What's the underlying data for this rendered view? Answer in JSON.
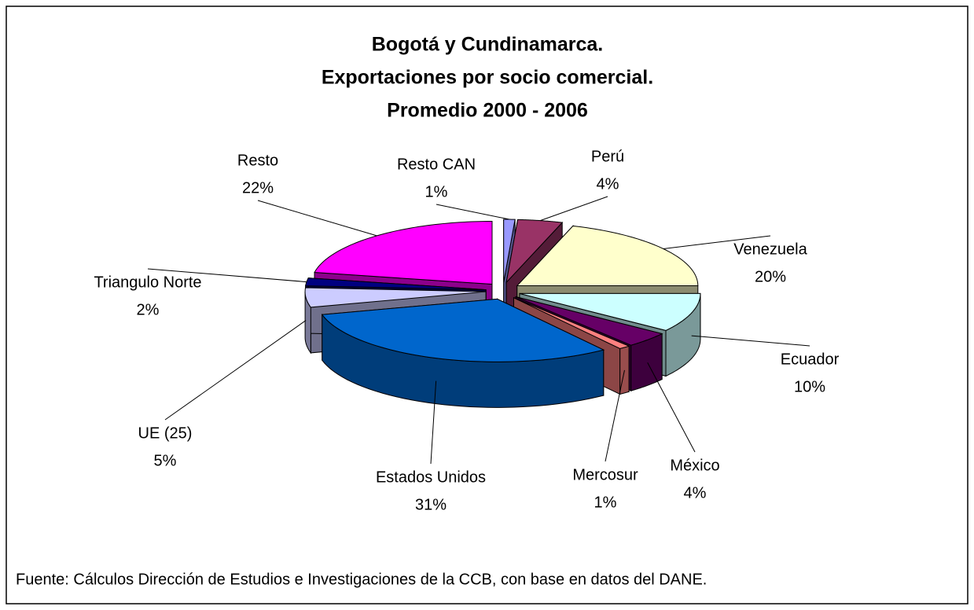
{
  "chart_data": {
    "type": "pie",
    "title": [
      "Bogotá y Cundinamarca.",
      "Exportaciones por socio comercial.",
      "Promedio 2000 - 2006"
    ],
    "categories": [
      "Resto CAN",
      "Perú",
      "Venezuela",
      "Ecuador",
      "México",
      "Mercosur",
      "Estados Unidos",
      "UE (25)",
      "Triangulo Norte",
      "Resto"
    ],
    "values": [
      1,
      4,
      20,
      10,
      4,
      1,
      31,
      5,
      2,
      22
    ],
    "value_labels": [
      "1%",
      "4%",
      "20%",
      "10%",
      "4%",
      "1%",
      "31%",
      "5%",
      "2%",
      "22%"
    ],
    "colors": [
      "#9999ff",
      "#993366",
      "#ffffcc",
      "#ccffff",
      "#660066",
      "#ff8080",
      "#0066cc",
      "#ccccff",
      "#000080",
      "#ff00ff"
    ],
    "source": "Fuente: Cálculos Dirección de Estudios e Investigaciones de la CCB, con base en datos del DANE."
  }
}
